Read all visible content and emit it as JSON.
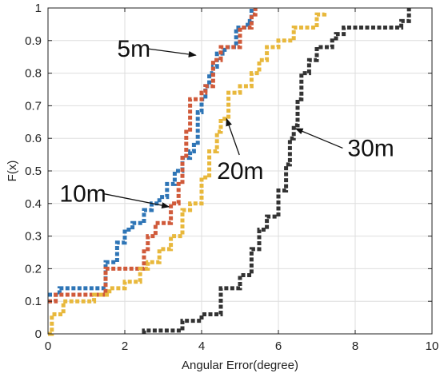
{
  "chart_data": {
    "type": "line",
    "title": "",
    "xlabel": "Angular Error(degree)",
    "ylabel": "F(x)",
    "xlim": [
      0,
      10
    ],
    "ylim": [
      0,
      1
    ],
    "xticks": [
      0,
      2,
      4,
      6,
      8,
      10
    ],
    "yticks": [
      0,
      0.1,
      0.2,
      0.3,
      0.4,
      0.5,
      0.6,
      0.7,
      0.8,
      0.9,
      1
    ],
    "grid": true,
    "series": [
      {
        "name": "5m",
        "color": "#2E75B6",
        "x": [
          0,
          0.3,
          1.3,
          1.5,
          1.8,
          2.0,
          2.2,
          2.5,
          2.7,
          2.9,
          3.1,
          3.3,
          3.5,
          3.7,
          3.8,
          3.9,
          4.0,
          4.1,
          4.2,
          4.3,
          4.4,
          4.6,
          4.9,
          5.2,
          5.3
        ],
        "y": [
          0.12,
          0.14,
          0.14,
          0.22,
          0.28,
          0.32,
          0.34,
          0.38,
          0.4,
          0.42,
          0.46,
          0.5,
          0.54,
          0.56,
          0.58,
          0.68,
          0.72,
          0.76,
          0.8,
          0.82,
          0.86,
          0.88,
          0.94,
          0.96,
          1.0
        ]
      },
      {
        "name": "10m",
        "color": "#D05A3A",
        "x": [
          0,
          0.2,
          1.2,
          1.5,
          2.2,
          2.5,
          2.6,
          2.8,
          3.1,
          3.2,
          3.4,
          3.5,
          3.6,
          3.7,
          4.0,
          4.1,
          4.3,
          4.5,
          4.7,
          5.0,
          5.3,
          5.4
        ],
        "y": [
          0.1,
          0.12,
          0.12,
          0.2,
          0.2,
          0.26,
          0.3,
          0.34,
          0.34,
          0.4,
          0.46,
          0.54,
          0.62,
          0.72,
          0.74,
          0.76,
          0.84,
          0.88,
          0.88,
          0.94,
          0.98,
          1.0
        ]
      },
      {
        "name": "20m",
        "color": "#E8B83C",
        "x": [
          0,
          0.1,
          0.4,
          1.2,
          1.6,
          2.0,
          2.4,
          2.6,
          2.9,
          3.2,
          3.5,
          3.7,
          4.0,
          4.2,
          4.4,
          4.5,
          4.7,
          5.0,
          5.3,
          5.5,
          5.7,
          6.0,
          6.4,
          7.0,
          7.2
        ],
        "y": [
          0.0,
          0.06,
          0.1,
          0.12,
          0.14,
          0.16,
          0.2,
          0.22,
          0.26,
          0.3,
          0.38,
          0.4,
          0.48,
          0.56,
          0.62,
          0.66,
          0.74,
          0.76,
          0.8,
          0.84,
          0.88,
          0.9,
          0.94,
          0.98,
          0.99
        ]
      },
      {
        "name": "30m",
        "color": "#333333",
        "x": [
          2.5,
          2.5,
          3.0,
          3.5,
          4.0,
          4.5,
          5.0,
          5.3,
          5.5,
          5.7,
          6.0,
          6.2,
          6.3,
          6.4,
          6.5,
          6.6,
          6.8,
          7.0,
          7.4,
          7.5,
          7.7,
          8.5,
          9.2,
          9.4
        ],
        "y": [
          0.0,
          0.01,
          0.01,
          0.04,
          0.06,
          0.14,
          0.18,
          0.26,
          0.32,
          0.36,
          0.44,
          0.52,
          0.6,
          0.64,
          0.72,
          0.8,
          0.84,
          0.88,
          0.9,
          0.92,
          0.94,
          0.94,
          0.96,
          1.0
        ]
      }
    ],
    "annotations": [
      {
        "text": "5m",
        "text_x": 1.8,
        "text_y": 0.875,
        "arrow_x": 3.85,
        "arrow_y": 0.855
      },
      {
        "text": "10m",
        "text_x": 0.3,
        "text_y": 0.43,
        "arrow_x": 3.15,
        "arrow_y": 0.39
      },
      {
        "text": "20m",
        "text_x": 4.4,
        "text_y": 0.5,
        "arrow_x": 4.65,
        "arrow_y": 0.66
      },
      {
        "text": "30m",
        "text_x": 7.8,
        "text_y": 0.57,
        "arrow_x": 6.45,
        "arrow_y": 0.63
      }
    ]
  }
}
